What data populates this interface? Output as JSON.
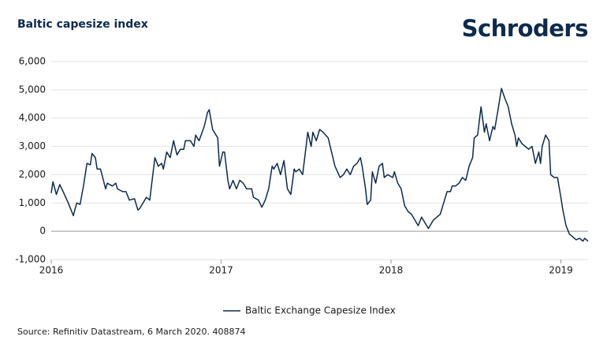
{
  "logo": "Schroders",
  "chart_data": {
    "type": "line",
    "title": "Baltic capesize index",
    "source": "Source: Refinitiv Datastream, 6 March 2020. 408874",
    "x": [
      2016.0,
      2016.01,
      2016.03,
      2016.05,
      2016.07,
      2016.1,
      2016.12,
      2016.13,
      2016.15,
      2016.17,
      2016.19,
      2016.21,
      2016.23,
      2016.24,
      2016.26,
      2016.27,
      2016.29,
      2016.32,
      2016.33,
      2016.36,
      2016.38,
      2016.39,
      2016.42,
      2016.44,
      2016.46,
      2016.49,
      2016.51,
      2016.52,
      2016.56,
      2016.58,
      2016.59,
      2016.61,
      2016.63,
      2016.65,
      2016.66,
      2016.68,
      2016.7,
      2016.72,
      2016.74,
      2016.76,
      2016.78,
      2016.79,
      2016.82,
      2016.84,
      2016.85,
      2016.87,
      2016.9,
      2016.92,
      2016.93,
      2016.95,
      2016.98,
      2016.99,
      2017.01,
      2017.02,
      2017.04,
      2017.05,
      2017.07,
      2017.09,
      2017.11,
      2017.13,
      2017.15,
      2017.18,
      2017.19,
      2017.22,
      2017.24,
      2017.26,
      2017.28,
      2017.3,
      2017.31,
      2017.33,
      2017.35,
      2017.37,
      2017.39,
      2017.41,
      2017.43,
      2017.44,
      2017.46,
      2017.48,
      2017.5,
      2017.51,
      2017.53,
      2017.54,
      2017.56,
      2017.58,
      2017.6,
      2017.63,
      2017.65,
      2017.67,
      2017.7,
      2017.72,
      2017.74,
      2017.76,
      2017.78,
      2017.8,
      2017.82,
      2017.83,
      2017.85,
      2017.86,
      2017.88,
      2017.89,
      2017.91,
      2017.93,
      2017.95,
      2017.96,
      2017.98,
      2018.01,
      2018.02,
      2018.04,
      2018.06,
      2018.08,
      2018.1,
      2018.12,
      2018.14,
      2018.16,
      2018.18,
      2018.2,
      2018.22,
      2018.25,
      2018.27,
      2018.29,
      2018.31,
      2018.33,
      2018.35,
      2018.36,
      2018.38,
      2018.4,
      2018.42,
      2018.44,
      2018.46,
      2018.48,
      2018.49,
      2018.51,
      2018.53,
      2018.55,
      2018.56,
      2018.58,
      2018.6,
      2018.61,
      2018.63,
      2018.65,
      2018.67,
      2018.69,
      2018.71,
      2018.73,
      2018.74,
      2018.75,
      2018.77,
      2018.79,
      2018.81,
      2018.83,
      2018.85,
      2018.87,
      2018.88,
      2018.89,
      2018.91,
      2018.93,
      2018.94,
      2018.96,
      2018.98,
      2019.0,
      2019.01,
      2019.03,
      2019.05,
      2019.07,
      2019.09,
      2019.11,
      2019.13,
      2019.14,
      2019.16
    ],
    "series": [
      {
        "name": "Baltic Exchange Capesize Index",
        "color": "#0e2a4e",
        "values": [
          1350,
          1750,
          1300,
          1650,
          1400,
          1000,
          700,
          550,
          1000,
          950,
          1600,
          2400,
          2350,
          2750,
          2600,
          2200,
          2200,
          1500,
          1700,
          1600,
          1700,
          1500,
          1400,
          1400,
          1100,
          1150,
          750,
          800,
          1200,
          1100,
          1600,
          2600,
          2300,
          2400,
          2200,
          2800,
          2600,
          3200,
          2700,
          2900,
          2900,
          3200,
          3200,
          3000,
          3400,
          3200,
          3700,
          4200,
          4300,
          3600,
          3300,
          2300,
          2800,
          2800,
          1800,
          1500,
          1800,
          1500,
          1800,
          1700,
          1500,
          1500,
          1200,
          1100,
          850,
          1100,
          1500,
          2300,
          2200,
          2400,
          2000,
          2500,
          1500,
          1300,
          2200,
          2100,
          2200,
          2000,
          3000,
          3500,
          3000,
          3500,
          3200,
          3600,
          3500,
          3300,
          2800,
          2300,
          1900,
          2000,
          2200,
          2000,
          2300,
          2400,
          2600,
          2300,
          1500,
          950,
          1100,
          2100,
          1700,
          2300,
          2400,
          1900,
          2000,
          1900,
          2100,
          1700,
          1500,
          900,
          700,
          600,
          400,
          200,
          500,
          300,
          100,
          400,
          500,
          600,
          1000,
          1400,
          1400,
          1600,
          1600,
          1700,
          1900,
          1800,
          2300,
          2600,
          3300,
          3400,
          4400,
          3500,
          3800,
          3200,
          3700,
          3600,
          4300,
          5050,
          4700,
          4400,
          3800,
          3400,
          3000,
          3300,
          3100,
          3000,
          2900,
          3000,
          2400,
          2800,
          2400,
          3000,
          3400,
          3200,
          2000,
          1900,
          1900,
          1200,
          800,
          200,
          -100,
          -200,
          -300,
          -250,
          -350,
          -250,
          -350
        ]
      }
    ],
    "xlim": [
      2016,
      2019.16
    ],
    "xticks": [
      2016,
      2017,
      2018,
      2019
    ],
    "ylim": [
      -1000,
      6000
    ],
    "yticks": [
      {
        "value": -1000,
        "label": "-1,000"
      },
      0,
      {
        "value": 1000,
        "label": "1,000"
      },
      {
        "value": 2000,
        "label": "2,000"
      },
      {
        "value": 3000,
        "label": "3,000"
      },
      {
        "value": 4000,
        "label": "4,000"
      },
      {
        "value": 5000,
        "label": "5,000"
      },
      {
        "value": 6000,
        "label": "6,000"
      }
    ],
    "grid": true,
    "legend": "bottom"
  }
}
